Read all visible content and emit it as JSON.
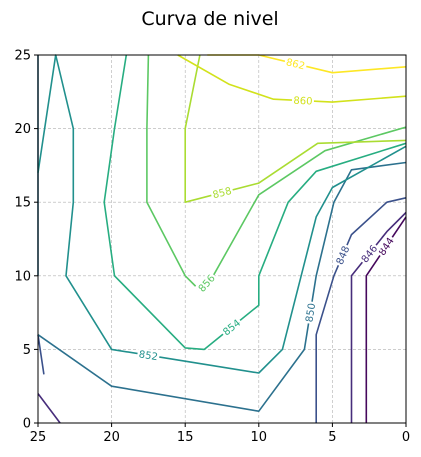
{
  "chart_data": {
    "type": "contour",
    "title": "Curva de nivel",
    "xlabel": "",
    "ylabel": "",
    "xlim": [
      25,
      0
    ],
    "ylim": [
      0,
      25
    ],
    "xticks": [
      25,
      20,
      15,
      10,
      5,
      0
    ],
    "yticks": [
      0,
      5,
      10,
      15,
      20,
      25
    ],
    "grid": true,
    "levels": [
      {
        "value": 844,
        "label": "844",
        "color": "#46085c",
        "points": [
          [
            2.7,
            0
          ],
          [
            2.7,
            10
          ],
          [
            0,
            14
          ]
        ]
      },
      {
        "value": 846,
        "label": "846",
        "color": "#472d7b",
        "points": [
          [
            3.7,
            0
          ],
          [
            3.7,
            10
          ],
          [
            1.3,
            13
          ],
          [
            0,
            14.3
          ],
          [
            23.5,
            0
          ],
          [
            25,
            2
          ]
        ]
      },
      {
        "value": 848,
        "label": "848",
        "color": "#3b518b",
        "points": [
          [
            6.1,
            0
          ],
          [
            6.1,
            6
          ],
          [
            4.9,
            10
          ],
          [
            3.7,
            12.8
          ],
          [
            1.3,
            15
          ],
          [
            0,
            15.3
          ],
          [
            24.6,
            3.3
          ],
          [
            25,
            6
          ]
        ]
      },
      {
        "value": 850,
        "label": "850",
        "color": "#2c718e",
        "points": [
          [
            25,
            10
          ],
          [
            25,
            25
          ],
          [
            25,
            6
          ],
          [
            20,
            2.5
          ],
          [
            10,
            0.8
          ],
          [
            6.9,
            5
          ],
          [
            6.1,
            10
          ],
          [
            4.9,
            15
          ],
          [
            3.7,
            17.2
          ],
          [
            0,
            17.7
          ]
        ]
      },
      {
        "value": 852,
        "label": "852",
        "color": "#21908d",
        "points": [
          [
            25,
            17
          ],
          [
            23.8,
            25
          ],
          [
            22.6,
            20
          ],
          [
            22.6,
            15
          ],
          [
            23.1,
            10
          ],
          [
            20,
            5
          ],
          [
            15,
            4.2
          ],
          [
            10,
            3.4
          ],
          [
            8.4,
            5
          ],
          [
            6.1,
            14
          ],
          [
            5,
            16
          ],
          [
            0,
            18.8
          ]
        ]
      },
      {
        "value": 854,
        "label": "854",
        "color": "#27ad81",
        "points": [
          [
            19,
            25
          ],
          [
            19.8,
            20
          ],
          [
            20.5,
            15
          ],
          [
            19.8,
            10
          ],
          [
            15,
            5.1
          ],
          [
            13.7,
            5
          ],
          [
            10,
            8
          ],
          [
            10,
            10
          ],
          [
            8,
            15
          ],
          [
            6.1,
            17.1
          ],
          [
            0,
            19
          ]
        ]
      },
      {
        "value": 856,
        "label": "856",
        "color": "#5cc863",
        "points": [
          [
            17.5,
            25
          ],
          [
            17.6,
            20
          ],
          [
            17.6,
            15
          ],
          [
            15,
            10
          ],
          [
            14,
            9
          ],
          [
            13.1,
            10
          ],
          [
            10,
            15.5
          ],
          [
            5.5,
            18.5
          ],
          [
            0,
            20.1
          ]
        ]
      },
      {
        "value": 858,
        "label": "858",
        "color": "#aadc32",
        "points": [
          [
            14,
            25
          ],
          [
            15,
            20
          ],
          [
            15,
            15
          ],
          [
            10,
            16.3
          ],
          [
            6,
            19
          ],
          [
            0,
            19.2
          ]
        ]
      },
      {
        "value": 860,
        "label": "860",
        "color": "#d2e21b",
        "points": [
          [
            15.5,
            25
          ],
          [
            12,
            23
          ],
          [
            9,
            22
          ],
          [
            5,
            21.8
          ],
          [
            0,
            22.2
          ]
        ]
      },
      {
        "value": 862,
        "label": "862",
        "color": "#fde725",
        "points": [
          [
            13.5,
            25
          ],
          [
            10,
            25
          ],
          [
            5,
            23.8
          ],
          [
            0,
            24.2
          ]
        ]
      }
    ]
  }
}
